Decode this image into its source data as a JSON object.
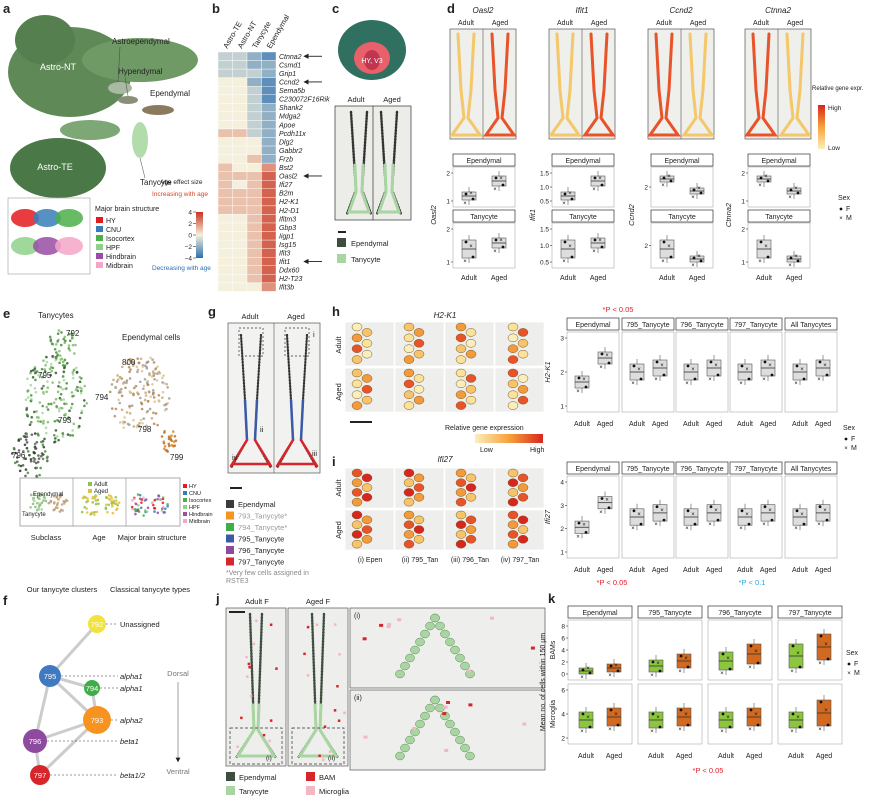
{
  "figure": {
    "a": {
      "label": "a",
      "clusters": [
        "Astro-NT",
        "Astroependymal",
        "Hypendymal",
        "Ependymal",
        "Tanycyte",
        "Astro-TE"
      ],
      "legend_title": "Major brain structure",
      "regions": [
        "HY",
        "CNU",
        "Isocortex",
        "HPF",
        "Hindbrain",
        "Midbrain"
      ],
      "region_colors": [
        "#e41a1c",
        "#377eb8",
        "#4daf4a",
        "#8fd18a",
        "#984ea3",
        "#f4a6c8"
      ],
      "colorbar": {
        "title": "Age effect size",
        "increasing": "Increasing with age",
        "decreasing": "Decreasing with age",
        "ticks": [
          4,
          2,
          0,
          {
            "value": -2,
            "label": "−2"
          },
          {
            "value": -4,
            "label": "−4"
          }
        ],
        "lim": [
          -4,
          4
        ]
      }
    },
    "b": {
      "label": "b",
      "columns": [
        "Astro-TE",
        "Astro-NT",
        "Tanycyte",
        "Ependymal"
      ],
      "genes": [
        "Ctnna2",
        "Csmd1",
        "Grip1",
        "Ccnd2",
        "Sema5b",
        "C230072F16Rik",
        "Shank2",
        "Mdga2",
        "Apoe",
        "Pcdh11x",
        "Dlg2",
        "Gabbr2",
        "Frzb",
        "Bst2",
        "Oasl2",
        "Ifi27",
        "B2m",
        "H2-K1",
        "H2-D1",
        "Ifitm3",
        "Gbp3",
        "Iigp1",
        "Isg15",
        "Ifit3",
        "Ifit1",
        "Ddx60",
        "H2-T23",
        "Ifit3b"
      ],
      "values": [
        [
          -1,
          -1,
          -2,
          -3
        ],
        [
          -1,
          -1,
          -2,
          -2
        ],
        [
          -1,
          -1,
          -1,
          -2
        ],
        [
          0,
          0,
          -2,
          -3
        ],
        [
          0,
          0,
          -1,
          -3
        ],
        [
          0,
          0,
          -1,
          -3
        ],
        [
          0,
          0,
          -1,
          -2
        ],
        [
          0,
          0,
          -1,
          -2
        ],
        [
          0,
          0,
          -1,
          -2
        ],
        [
          1,
          1,
          -1,
          -2
        ],
        [
          0,
          0,
          0,
          -2
        ],
        [
          0,
          0,
          0,
          -2
        ],
        [
          0,
          0,
          1,
          -2
        ],
        [
          1,
          0,
          0,
          2
        ],
        [
          1,
          1,
          1,
          3
        ],
        [
          1,
          0,
          1,
          3
        ],
        [
          1,
          1,
          1,
          3
        ],
        [
          1,
          1,
          1,
          3
        ],
        [
          1,
          1,
          1,
          3
        ],
        [
          0,
          0,
          1,
          3
        ],
        [
          0,
          0,
          1,
          3
        ],
        [
          0,
          0,
          1,
          3
        ],
        [
          0,
          0,
          1,
          3
        ],
        [
          0,
          0,
          1,
          3
        ],
        [
          0,
          0,
          1,
          3
        ],
        [
          0,
          0,
          1,
          3
        ],
        [
          0,
          0,
          1,
          3
        ],
        [
          0,
          0,
          0,
          2
        ]
      ]
    },
    "c": {
      "label": "c",
      "region": "HY, V3",
      "ages": [
        "Adult",
        "Aged"
      ],
      "legend": [
        {
          "name": "Ependymal",
          "color": "#3e4e3e"
        },
        {
          "name": "Tanycyte",
          "color": "#a8d5a2"
        }
      ]
    },
    "d": {
      "label": "d",
      "genes": [
        "Oasl2",
        "Ifit1",
        "Ccnd2",
        "Ctnna2"
      ],
      "ages": [
        "Adult",
        "Aged"
      ],
      "expr_legend": {
        "title": "Relative gene expr.",
        "high": "High",
        "low": "Low"
      },
      "facets": [
        "Ependymal",
        "Tanycyte"
      ],
      "yticks": [
        [
          [
            2,
            1
          ],
          [
            2,
            1
          ]
        ],
        [
          [
            1.5,
            {
              "value": 1,
              "label": "1.0"
            },
            0.5
          ],
          [
            1.5,
            {
              "value": 1,
              "label": "1.0"
            },
            0.5
          ]
        ],
        [
          [
            2
          ],
          [
            2
          ]
        ],
        [
          [
            2,
            1
          ],
          [
            2,
            1
          ]
        ]
      ],
      "sex_legend": {
        "title": "Sex",
        "levels": [
          "F",
          "M"
        ]
      },
      "p_note": "*P < 0.05"
    },
    "e": {
      "label": "e",
      "tanycytes_title": "Tanycytes",
      "tanycyte_clusters": [
        "792",
        "795",
        "794",
        "793",
        "796",
        "797"
      ],
      "ependymal_title": "Ependymal cells",
      "ependymal_clusters": [
        "800",
        "798",
        "799"
      ],
      "inset_subclasses": [
        "Ependymal",
        "Tanycyte"
      ],
      "inset_ages": [
        "Adult",
        "Aged"
      ],
      "regions": [
        "HY",
        "CNU",
        "Isocortex",
        "HPF",
        "Hindbrain",
        "Midbrain"
      ],
      "panel_titles": [
        "Subclass",
        "Age",
        "Major brain structure"
      ]
    },
    "f": {
      "label": "f",
      "left_title": "Our tanycyte clusters",
      "right_title": "Classical tanycyte types",
      "nodes": [
        {
          "label": "792",
          "type": "Unassigned",
          "color": "#f2e33a"
        },
        {
          "label": "795",
          "type": "alpha1",
          "color": "#3f79bf"
        },
        {
          "label": "794",
          "type": "alpha1",
          "color": "#3fae49"
        },
        {
          "label": "793",
          "type": "alpha2",
          "color": "#f7931e"
        },
        {
          "label": "796",
          "type": "beta1",
          "color": "#8e4a9e"
        },
        {
          "label": "797",
          "type": "beta1/2",
          "color": "#d7262b"
        }
      ],
      "dorsal": "Dorsal",
      "ventral": "Ventral"
    },
    "g": {
      "label": "g",
      "ages": [
        "Adult",
        "Aged"
      ],
      "regions": [
        "i",
        "ii",
        "iii",
        "iv"
      ],
      "legend": [
        {
          "name": "Ependymal",
          "color": "#3b3b3b"
        },
        {
          "name": "793_Tanycyte*",
          "color": "#f7931e"
        },
        {
          "name": "794_Tanycyte*",
          "color": "#3fae49"
        },
        {
          "name": "795_Tanycyte",
          "color": "#3b5ba9"
        },
        {
          "name": "796_Tanycyte",
          "color": "#8e4a9e"
        },
        {
          "name": "797_Tanycyte",
          "color": "#d7262b"
        }
      ],
      "note": "*Very few cells assigned in RSTE3"
    },
    "h": {
      "label": "h",
      "gene": "H2-K1",
      "ages": [
        "Adult",
        "Aged"
      ],
      "expr_legend": {
        "title": "Relative gene expression",
        "low": "Low",
        "high": "High"
      },
      "facets": [
        "Ependymal",
        "795_Tanycyte",
        "796_Tanycyte",
        "797_Tanycyte",
        "All Tanycytes"
      ],
      "y_label": "H2-K1",
      "yticks": [
        3,
        2,
        1
      ],
      "sex_legend": {
        "title": "Sex",
        "levels": [
          "F",
          "M"
        ]
      }
    },
    "i": {
      "label": "i",
      "gene": "Ifi27",
      "ages": [
        "Adult",
        "Aged"
      ],
      "regions": [
        "(i) Epen",
        "(ii) 795_Tan",
        "(iii) 796_Tan",
        "(iv) 797_Tan"
      ],
      "facets": [
        "Ependymal",
        "795_Tanycyte",
        "796_Tanycyte",
        "797_Tanycyte",
        "All Tanycytes"
      ],
      "y_label": "Ifi27",
      "yticks": [
        4,
        3,
        2,
        1
      ],
      "p_notes": [
        "*P < 0.05",
        "*P < 0.1"
      ]
    },
    "j": {
      "label": "j",
      "ages": [
        "Adult F",
        "Aged F"
      ],
      "zooms": [
        "(i)",
        "(ii)"
      ],
      "insets": [
        "(i)",
        "(ii)"
      ],
      "legend": [
        {
          "name": "Ependymal",
          "color": "#3e4e3e"
        },
        {
          "name": "Tanycyte",
          "color": "#a8d5a2"
        },
        {
          "name": "BAM",
          "color": "#d7262b"
        },
        {
          "name": "Microglia",
          "color": "#f4b6c2"
        }
      ]
    },
    "k": {
      "label": "k",
      "facets": [
        "Ependymal",
        "795_Tanycyte",
        "796_Tanycyte",
        "797_Tanycyte"
      ],
      "y_label": "Mean no. of cells within 150 µm",
      "rows": [
        "BAMs",
        "Microglia"
      ],
      "yticks": [
        [
          8,
          6,
          4,
          2,
          0
        ],
        [
          6,
          4,
          2
        ]
      ],
      "ages": [
        "Adult",
        "Aged"
      ],
      "sex_legend": {
        "title": "Sex",
        "levels": [
          "F",
          "M"
        ]
      },
      "p_note": "*P < 0.05"
    }
  }
}
